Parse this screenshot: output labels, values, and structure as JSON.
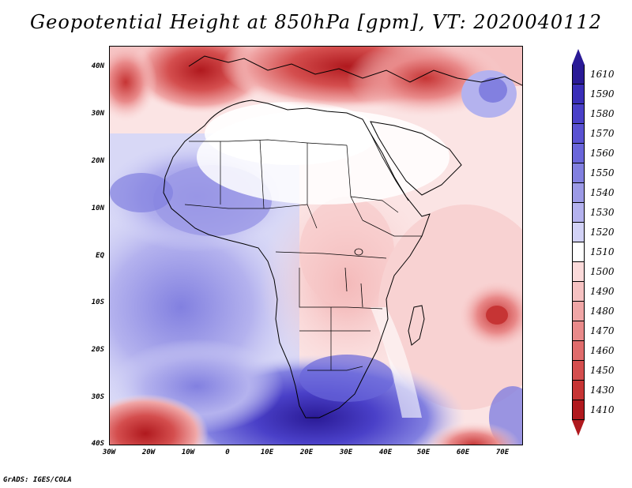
{
  "title": "Geopotential Height at 850hPa [gpm], VT: 2020040112",
  "footer": "GrADS: IGES/COLA",
  "lat_labels": [
    "40N",
    "30N",
    "20N",
    "10N",
    "EQ",
    "10S",
    "20S",
    "30S",
    "40S"
  ],
  "lon_labels": [
    "30W",
    "20W",
    "10W",
    "0",
    "10E",
    "20E",
    "30E",
    "40E",
    "50E",
    "60E",
    "70E"
  ],
  "legend": {
    "levels": [
      "1610",
      "1590",
      "1580",
      "1570",
      "1560",
      "1550",
      "1540",
      "1530",
      "1520",
      "1510",
      "1500",
      "1490",
      "1480",
      "1470",
      "1460",
      "1450",
      "1430",
      "1410"
    ],
    "colors": [
      "#2a1a96",
      "#3a2eb8",
      "#4a40c8",
      "#5a52d2",
      "#6a66da",
      "#8280e0",
      "#9c9ae6",
      "#b4b2ee",
      "#d2d2f6",
      "#ffffff",
      "#fbdada",
      "#f6c2c2",
      "#f0a6a6",
      "#e98a8a",
      "#e06c6c",
      "#d44e4e",
      "#c63434",
      "#b0191e"
    ]
  },
  "colors": {
    "ocean_base": "#fbe0e0",
    "land_white": "#ffffff",
    "coast": "#000000"
  }
}
